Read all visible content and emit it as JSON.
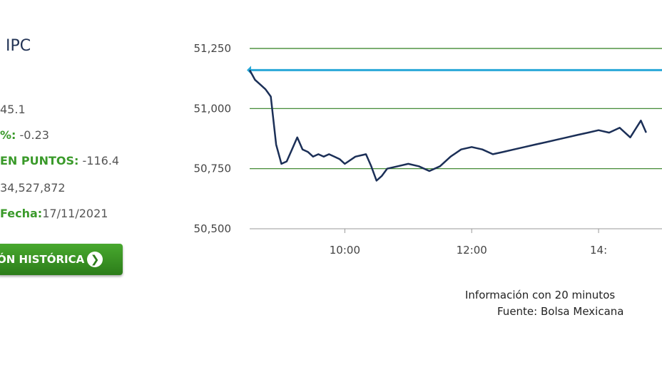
{
  "header": {
    "title": "IPC"
  },
  "stats": {
    "last_value": "45.1",
    "pct_label": "%:",
    "pct_value": "-0.23",
    "points_label": "EN PUNTOS:",
    "points_value": "-116.4",
    "volume": "34,527,872",
    "date_label": "Fecha:",
    "date_value": "17/11/2021"
  },
  "button": {
    "label": "ÓN HISTÓRICA",
    "icon": "chevron-right-icon"
  },
  "footer": {
    "line1": "Información con 20 minutos",
    "line2": "Fuente: Bolsa Mexicana"
  },
  "colors": {
    "series": "#1b2f57",
    "reference": "#29a8d8",
    "grid": "#2e7d1e",
    "accent": "#3a9a2a"
  },
  "chart_data": {
    "type": "line",
    "y_ticks": [
      "51,250",
      "51,000",
      "50,750",
      "50,500"
    ],
    "x_ticks": [
      "10:00",
      "12:00",
      "14:"
    ],
    "ylim": [
      50500,
      51250
    ],
    "xlim": [
      "08:30",
      "15:00"
    ],
    "grid": "horizontal",
    "reference_line": 51160,
    "series": [
      {
        "x": [
          "08:30",
          "08:35",
          "08:40",
          "08:45",
          "08:50",
          "08:55",
          "09:00",
          "09:05",
          "09:10",
          "09:15",
          "09:20",
          "09:25",
          "09:30",
          "09:35",
          "09:40",
          "09:45",
          "09:50",
          "09:55",
          "10:00",
          "10:10",
          "10:20",
          "10:25",
          "10:30",
          "10:35",
          "10:40",
          "10:50",
          "11:00",
          "11:10",
          "11:20",
          "11:30",
          "11:40",
          "11:50",
          "12:00",
          "12:10",
          "12:20",
          "12:30",
          "12:40",
          "12:50",
          "13:00",
          "13:10",
          "13:20",
          "13:30",
          "13:40",
          "13:50",
          "14:00",
          "14:10",
          "14:20",
          "14:30",
          "14:40",
          "14:45"
        ],
        "values": [
          51160,
          51120,
          51100,
          51080,
          51050,
          50850,
          50770,
          50780,
          50830,
          50880,
          50830,
          50820,
          50800,
          50810,
          50800,
          50810,
          50800,
          50790,
          50770,
          50800,
          50810,
          50760,
          50700,
          50720,
          50750,
          50760,
          50770,
          50760,
          50740,
          50760,
          50800,
          50830,
          50840,
          50830,
          50810,
          50820,
          50830,
          50840,
          50850,
          50860,
          50870,
          50880,
          50890,
          50900,
          50910,
          50900,
          50920,
          50880,
          50950,
          50900
        ]
      }
    ]
  }
}
